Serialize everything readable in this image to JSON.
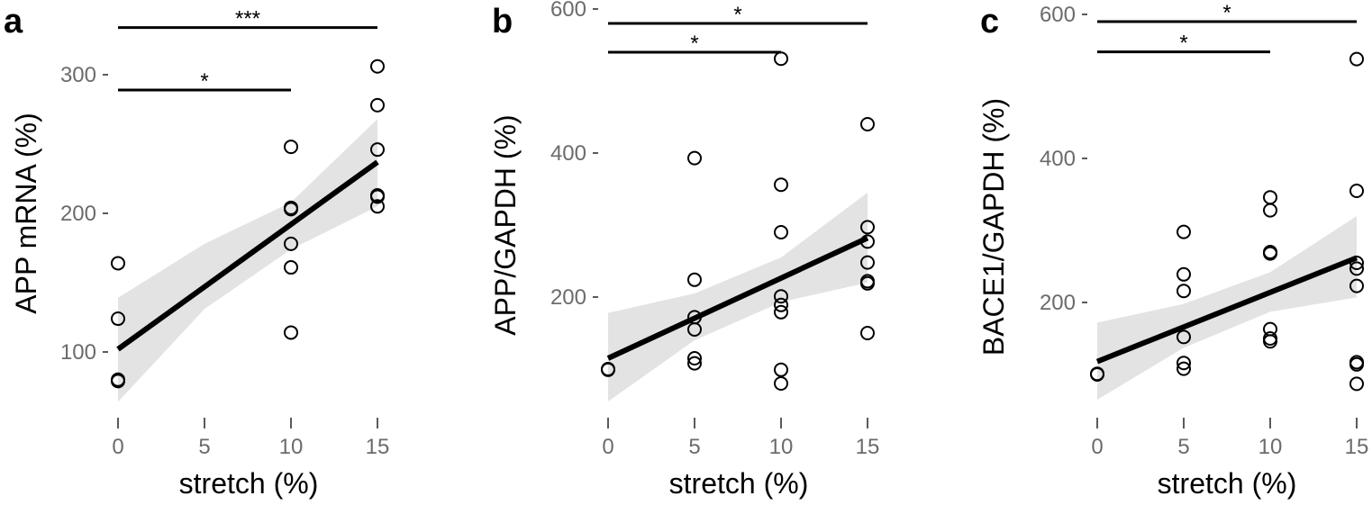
{
  "chart_data": [
    {
      "type": "scatter",
      "panel_label": "a",
      "xlabel": "stretch (%)",
      "ylabel": "APP mRNA (%)",
      "xlim": [
        0,
        15
      ],
      "ylim": [
        55,
        335
      ],
      "xticks": [
        0,
        5,
        10,
        15
      ],
      "yticks": [
        100,
        200,
        300
      ],
      "points": [
        {
          "x": 0,
          "y": 164
        },
        {
          "x": 0,
          "y": 124
        },
        {
          "x": 0,
          "y": 80
        },
        {
          "x": 0,
          "y": 79
        },
        {
          "x": 10,
          "y": 248
        },
        {
          "x": 10,
          "y": 204
        },
        {
          "x": 10,
          "y": 203
        },
        {
          "x": 10,
          "y": 178
        },
        {
          "x": 10,
          "y": 161
        },
        {
          "x": 10,
          "y": 114
        },
        {
          "x": 15,
          "y": 306
        },
        {
          "x": 15,
          "y": 278
        },
        {
          "x": 15,
          "y": 246
        },
        {
          "x": 15,
          "y": 213
        },
        {
          "x": 15,
          "y": 212
        },
        {
          "x": 15,
          "y": 205
        }
      ],
      "fit": {
        "x": [
          0,
          15
        ],
        "y": [
          102,
          237
        ]
      },
      "ci_band": {
        "x": [
          0,
          5,
          10,
          15
        ],
        "lower": [
          64,
          131,
          174,
          205
        ],
        "upper": [
          139,
          178,
          208,
          268
        ]
      },
      "significance": [
        {
          "x1": 0,
          "x2": 15,
          "y": 334,
          "label": "***"
        },
        {
          "x1": 0,
          "x2": 10,
          "y": 289,
          "label": "*"
        }
      ],
      "grid": false,
      "legend": "none"
    },
    {
      "type": "scatter",
      "panel_label": "b",
      "xlabel": "stretch (%)",
      "ylabel": "APP/GAPDH (%)",
      "xlim": [
        0,
        15
      ],
      "ylim": [
        45,
        600
      ],
      "xticks": [
        0,
        5,
        10,
        15
      ],
      "yticks": [
        200,
        400,
        600
      ],
      "points": [
        {
          "x": 0,
          "y": 100
        },
        {
          "x": 0,
          "y": 99
        },
        {
          "x": 5,
          "y": 393
        },
        {
          "x": 5,
          "y": 224
        },
        {
          "x": 5,
          "y": 172
        },
        {
          "x": 5,
          "y": 155
        },
        {
          "x": 5,
          "y": 115
        },
        {
          "x": 5,
          "y": 108
        },
        {
          "x": 10,
          "y": 531
        },
        {
          "x": 10,
          "y": 356
        },
        {
          "x": 10,
          "y": 290
        },
        {
          "x": 10,
          "y": 201
        },
        {
          "x": 10,
          "y": 189
        },
        {
          "x": 10,
          "y": 179
        },
        {
          "x": 10,
          "y": 99
        },
        {
          "x": 10,
          "y": 80
        },
        {
          "x": 15,
          "y": 440
        },
        {
          "x": 15,
          "y": 297
        },
        {
          "x": 15,
          "y": 277
        },
        {
          "x": 15,
          "y": 248
        },
        {
          "x": 15,
          "y": 222
        },
        {
          "x": 15,
          "y": 219
        },
        {
          "x": 15,
          "y": 150
        }
      ],
      "fit": {
        "x": [
          0,
          15
        ],
        "y": [
          115,
          282
        ]
      },
      "ci_band": {
        "x": [
          0,
          5,
          10,
          15
        ],
        "lower": [
          55,
          140,
          193,
          220
        ],
        "upper": [
          178,
          205,
          255,
          345
        ]
      },
      "significance": [
        {
          "x1": 0,
          "x2": 15,
          "y": 580,
          "label": "*"
        },
        {
          "x1": 0,
          "x2": 10,
          "y": 540,
          "label": "*"
        }
      ],
      "grid": false,
      "legend": "none"
    },
    {
      "type": "scatter",
      "panel_label": "c",
      "xlabel": "stretch (%)",
      "ylabel": "BACE1/GAPDH (%)",
      "xlim": [
        0,
        15
      ],
      "ylim": [
        45,
        600
      ],
      "xticks": [
        0,
        5,
        10,
        15
      ],
      "yticks": [
        200,
        400,
        600
      ],
      "points": [
        {
          "x": 0,
          "y": 101
        },
        {
          "x": 0,
          "y": 100
        },
        {
          "x": 5,
          "y": 298
        },
        {
          "x": 5,
          "y": 239
        },
        {
          "x": 5,
          "y": 216
        },
        {
          "x": 5,
          "y": 152
        },
        {
          "x": 5,
          "y": 116
        },
        {
          "x": 5,
          "y": 108
        },
        {
          "x": 10,
          "y": 346
        },
        {
          "x": 10,
          "y": 328
        },
        {
          "x": 10,
          "y": 270
        },
        {
          "x": 10,
          "y": 268
        },
        {
          "x": 10,
          "y": 163
        },
        {
          "x": 10,
          "y": 150
        },
        {
          "x": 10,
          "y": 146
        },
        {
          "x": 15,
          "y": 538
        },
        {
          "x": 15,
          "y": 355
        },
        {
          "x": 15,
          "y": 255
        },
        {
          "x": 15,
          "y": 247
        },
        {
          "x": 15,
          "y": 223
        },
        {
          "x": 15,
          "y": 117
        },
        {
          "x": 15,
          "y": 114
        },
        {
          "x": 15,
          "y": 87
        }
      ],
      "fit": {
        "x": [
          0,
          15
        ],
        "y": [
          118,
          262
        ]
      },
      "ci_band": {
        "x": [
          0,
          5,
          10,
          15
        ],
        "lower": [
          65,
          137,
          187,
          207
        ],
        "upper": [
          172,
          198,
          242,
          320
        ]
      },
      "significance": [
        {
          "x1": 0,
          "x2": 15,
          "y": 590,
          "label": "*"
        },
        {
          "x1": 0,
          "x2": 10,
          "y": 548,
          "label": "*"
        }
      ],
      "grid": false,
      "legend": "none"
    }
  ]
}
